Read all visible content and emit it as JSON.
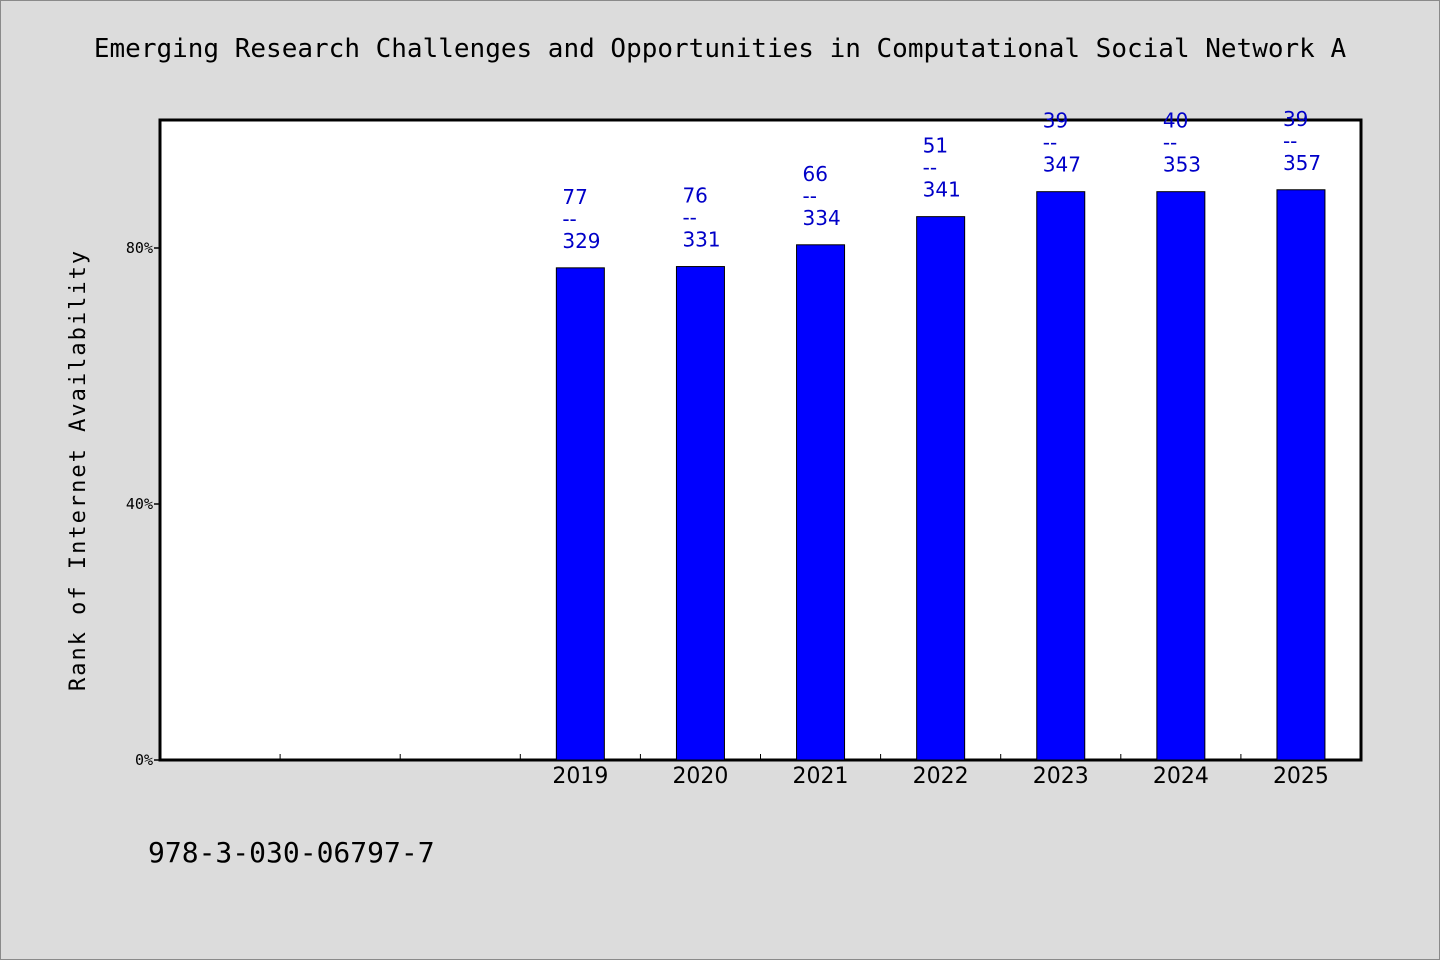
{
  "title": "Emerging Research Challenges and Opportunities in Computational Social Network A",
  "footer_code": "978-3-030-06797-7",
  "colors": {
    "bar": "#0000ff",
    "label": "#0000c8",
    "background": "#dcdcdc",
    "plot": "#ffffff"
  },
  "chart_data": {
    "type": "bar",
    "title": "Emerging Research Challenges and Opportunities in Computational Social Network A",
    "ylabel": "Rank of Internet Availability",
    "xlabel": "",
    "categories": [
      "",
      "",
      "",
      "2019",
      "2020",
      "2021",
      "2022",
      "2023",
      "2024",
      "2025"
    ],
    "values": [
      null,
      null,
      null,
      76.9,
      77.1,
      80.5,
      84.9,
      88.8,
      88.8,
      89.1
    ],
    "data_labels": [
      {
        "top": "77",
        "sep": "--",
        "bottom": "329"
      },
      {
        "top": "76",
        "sep": "--",
        "bottom": "331"
      },
      {
        "top": "66",
        "sep": "--",
        "bottom": "334"
      },
      {
        "top": "51",
        "sep": "--",
        "bottom": "341"
      },
      {
        "top": "39",
        "sep": "--",
        "bottom": "347"
      },
      {
        "top": "40",
        "sep": "--",
        "bottom": "353"
      },
      {
        "top": "39",
        "sep": "--",
        "bottom": "357"
      }
    ],
    "yticks": [
      0,
      40,
      80
    ],
    "ytick_labels": [
      "0%",
      "40%",
      "80%"
    ],
    "ylim": [
      0,
      100
    ],
    "grid": false,
    "legend": "none"
  }
}
